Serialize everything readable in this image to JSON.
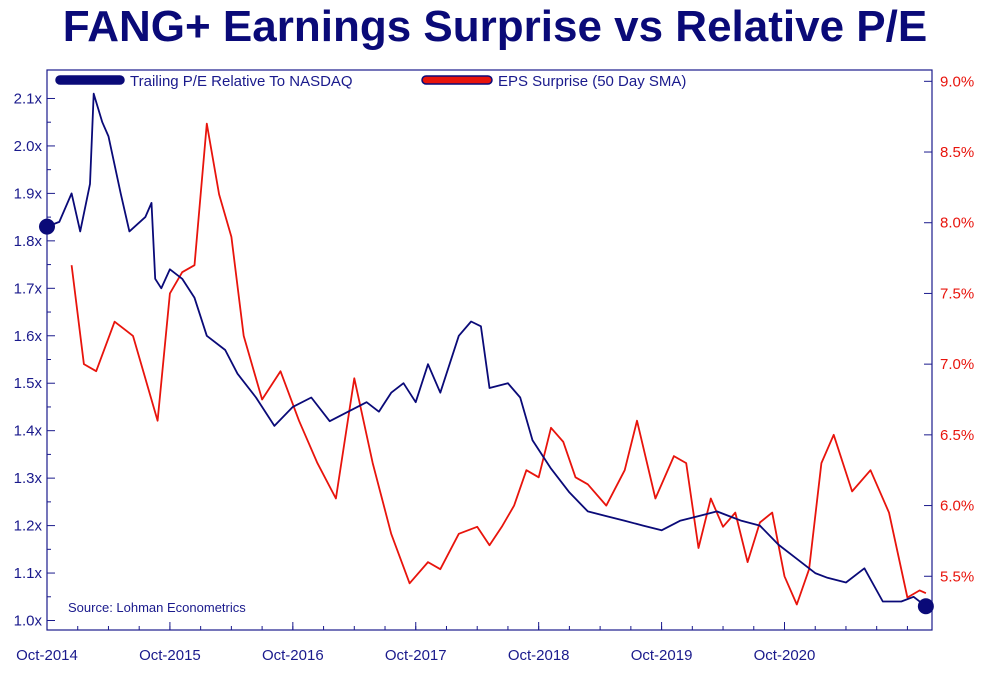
{
  "chart_data": {
    "type": "line",
    "title": "FANG+ Earnings Surprise vs Relative P/E",
    "source": "Source: Lohman Econometrics",
    "x_ticks": [
      "Oct-2014",
      "Oct-2015",
      "Oct-2016",
      "Oct-2017",
      "Oct-2018",
      "Oct-2019",
      "Oct-2020"
    ],
    "xlim": [
      2014.75,
      2021.95
    ],
    "y_left": {
      "ylim": [
        0.98,
        2.16
      ],
      "ticks": [
        1.0,
        1.1,
        1.2,
        1.3,
        1.4,
        1.5,
        1.6,
        1.7,
        1.8,
        1.9,
        2.0,
        2.1
      ],
      "tick_labels": [
        "1.0x",
        "1.1x",
        "1.2x",
        "1.3x",
        "1.4x",
        "1.5x",
        "1.6x",
        "1.7x",
        "1.8x",
        "1.9x",
        "2.0x",
        "2.1x"
      ]
    },
    "y_right": {
      "ylim": [
        5.12,
        9.08
      ],
      "ticks": [
        5.5,
        6.0,
        6.5,
        7.0,
        7.5,
        8.0,
        8.5,
        9.0
      ],
      "tick_labels": [
        "5.5%",
        "6.0%",
        "6.5%",
        "7.0%",
        "7.5%",
        "8.0%",
        "8.5%",
        "9.0%"
      ]
    },
    "legend_position": "top",
    "series": [
      {
        "name": "Trailing P/E Relative To NASDAQ",
        "axis": "left",
        "color": "#0a0a78",
        "x": [
          2014.75,
          2014.85,
          2014.95,
          2015.02,
          2015.1,
          2015.13,
          2015.2,
          2015.25,
          2015.35,
          2015.42,
          2015.55,
          2015.6,
          2015.63,
          2015.68,
          2015.75,
          2015.85,
          2015.95,
          2016.05,
          2016.2,
          2016.3,
          2016.45,
          2016.6,
          2016.75,
          2016.9,
          2017.05,
          2017.2,
          2017.35,
          2017.45,
          2017.55,
          2017.65,
          2017.75,
          2017.85,
          2017.95,
          2018.1,
          2018.2,
          2018.28,
          2018.35,
          2018.5,
          2018.6,
          2018.7,
          2018.85,
          2019.0,
          2019.15,
          2019.3,
          2019.45,
          2019.6,
          2019.75,
          2019.9,
          2020.05,
          2020.2,
          2020.3,
          2020.4,
          2020.55,
          2020.7,
          2020.85,
          2021.0,
          2021.1,
          2021.25,
          2021.4,
          2021.55,
          2021.7,
          2021.8,
          2021.9
        ],
        "y": [
          1.83,
          1.84,
          1.9,
          1.82,
          1.92,
          2.11,
          2.05,
          2.02,
          1.9,
          1.82,
          1.85,
          1.88,
          1.72,
          1.7,
          1.74,
          1.72,
          1.68,
          1.6,
          1.57,
          1.52,
          1.47,
          1.41,
          1.45,
          1.47,
          1.42,
          1.44,
          1.46,
          1.44,
          1.48,
          1.5,
          1.46,
          1.54,
          1.48,
          1.6,
          1.63,
          1.62,
          1.49,
          1.5,
          1.47,
          1.38,
          1.32,
          1.27,
          1.23,
          1.22,
          1.21,
          1.2,
          1.19,
          1.21,
          1.22,
          1.23,
          1.22,
          1.21,
          1.2,
          1.16,
          1.13,
          1.1,
          1.09,
          1.08,
          1.11,
          1.04,
          1.04,
          1.05,
          1.03
        ]
      },
      {
        "name": "EPS Surprise (50 Day SMA)",
        "axis": "right",
        "color": "#e8140c",
        "x": [
          2014.95,
          2015.05,
          2015.15,
          2015.3,
          2015.45,
          2015.55,
          2015.65,
          2015.75,
          2015.85,
          2015.95,
          2016.05,
          2016.15,
          2016.25,
          2016.35,
          2016.5,
          2016.65,
          2016.8,
          2016.95,
          2017.1,
          2017.25,
          2017.4,
          2017.55,
          2017.7,
          2017.85,
          2017.95,
          2018.1,
          2018.25,
          2018.35,
          2018.45,
          2018.55,
          2018.65,
          2018.75,
          2018.85,
          2018.95,
          2019.05,
          2019.15,
          2019.3,
          2019.45,
          2019.55,
          2019.7,
          2019.85,
          2019.95,
          2020.05,
          2020.15,
          2020.25,
          2020.35,
          2020.45,
          2020.55,
          2020.65,
          2020.75,
          2020.85,
          2020.95,
          2021.05,
          2021.15,
          2021.3,
          2021.45,
          2021.6,
          2021.75,
          2021.85,
          2021.9
        ],
        "y": [
          7.7,
          7.0,
          6.95,
          7.3,
          7.2,
          6.9,
          6.6,
          7.5,
          7.65,
          7.7,
          8.7,
          8.2,
          7.9,
          7.2,
          6.75,
          6.95,
          6.6,
          6.3,
          6.05,
          6.9,
          6.3,
          5.8,
          5.45,
          5.6,
          5.55,
          5.8,
          5.85,
          5.72,
          5.85,
          6.0,
          6.25,
          6.2,
          6.55,
          6.45,
          6.2,
          6.15,
          6.0,
          6.25,
          6.6,
          6.05,
          6.35,
          6.3,
          5.7,
          6.05,
          5.85,
          5.95,
          5.6,
          5.88,
          5.95,
          5.5,
          5.3,
          5.55,
          6.3,
          6.5,
          6.1,
          6.25,
          5.95,
          5.35,
          5.4,
          5.38
        ]
      }
    ]
  }
}
